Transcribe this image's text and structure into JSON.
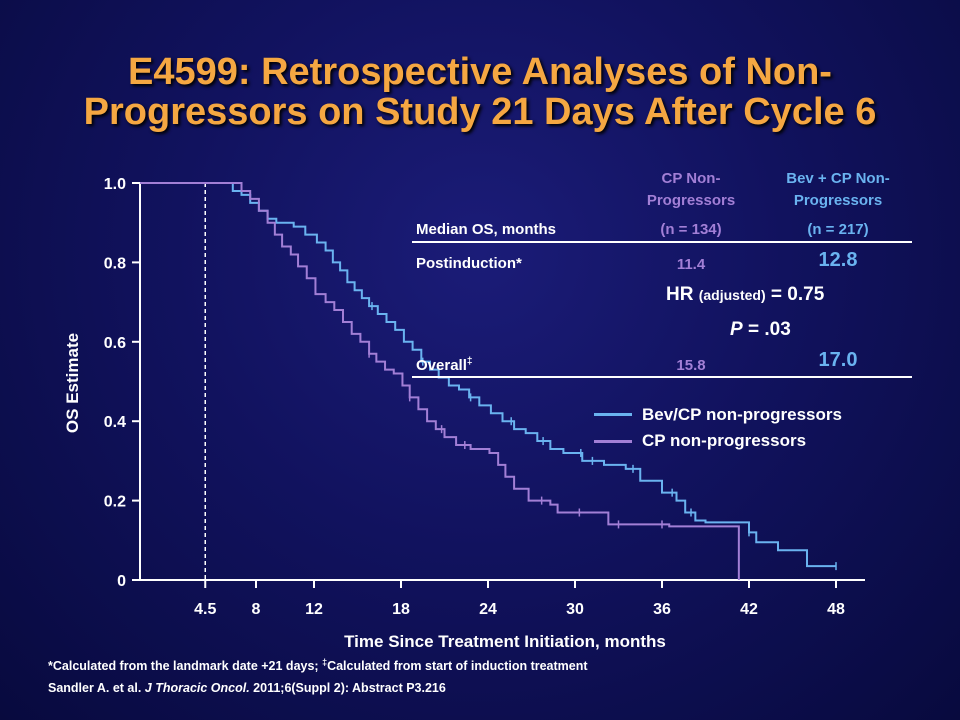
{
  "title": {
    "line1": "E4599: Retrospective Analyses of Non-",
    "line2": "Progressors on Study 21 Days After Cycle 6"
  },
  "table": {
    "col_cp_header_1": "CP Non-",
    "col_cp_header_2": "Progressors",
    "col_bev_header_1": "Bev + CP Non-",
    "col_bev_header_2": "Progressors",
    "row_header": "Median OS, months",
    "cp_n": "(n = 134)",
    "bev_n": "(n = 217)",
    "postinduction_label": "Postinduction*",
    "postinduction_cp": "11.4",
    "postinduction_bev": "12.8",
    "hr_prefix": "HR",
    "hr_adjusted": "(adjusted)",
    "hr_value": "= 0.75",
    "p_label": "P",
    "p_value": "= .03",
    "overall_label": "Overall",
    "overall_mark": "‡",
    "overall_cp": "15.8",
    "overall_bev": "17.0"
  },
  "legend": {
    "bev": "Bev/CP non-progressors",
    "cp": "CP non-progressors"
  },
  "colors": {
    "bev": "#6ab3f0",
    "cp": "#a27fd6",
    "title": "#f5a742"
  },
  "footer": {
    "line1_part1": "*Calculated from the landmark date +21 days; ",
    "line1_mark": "‡",
    "line1_part2": "Calculated from start of induction treatment",
    "line2_part1": "Sandler A. et al. ",
    "line2_journal": "J Thoracic Oncol.",
    "line2_part2": " 2011;6(Suppl 2): Abstract P3.216"
  },
  "chart_data": {
    "type": "line",
    "step": true,
    "xlabel": "Time Since Treatment Initiation, months",
    "ylabel": "OS Estimate",
    "xticks": [
      4.5,
      8,
      12,
      18,
      24,
      30,
      36,
      42,
      48
    ],
    "xtick_labels": [
      "4.5",
      "8",
      "12",
      "18",
      "24",
      "30",
      "36",
      "42",
      "48"
    ],
    "yticks": [
      0,
      0.2,
      0.4,
      0.6,
      0.8,
      1.0
    ],
    "ytick_labels": [
      "0",
      "0.2",
      "0.4",
      "0.6",
      "0.8",
      "1.0"
    ],
    "xlim": [
      0,
      50
    ],
    "ylim": [
      0,
      1
    ],
    "landmark_x": 4.5,
    "series": [
      {
        "name": "Bev/CP non-progressors",
        "color": "#6ab3f0",
        "points": [
          [
            0,
            1.0
          ],
          [
            6.0,
            1.0
          ],
          [
            6.4,
            0.98
          ],
          [
            7.0,
            0.97
          ],
          [
            7.6,
            0.95
          ],
          [
            8.2,
            0.93
          ],
          [
            8.8,
            0.91
          ],
          [
            9.4,
            0.9
          ],
          [
            10.2,
            0.9
          ],
          [
            10.6,
            0.89
          ],
          [
            11.4,
            0.87
          ],
          [
            12.2,
            0.85
          ],
          [
            12.8,
            0.83
          ],
          [
            13.3,
            0.8
          ],
          [
            13.8,
            0.78
          ],
          [
            14.3,
            0.75
          ],
          [
            14.8,
            0.73
          ],
          [
            15.3,
            0.71
          ],
          [
            15.8,
            0.69
          ],
          [
            16.4,
            0.67
          ],
          [
            17.0,
            0.65
          ],
          [
            17.6,
            0.63
          ],
          [
            18.2,
            0.6
          ],
          [
            18.8,
            0.58
          ],
          [
            19.4,
            0.55
          ],
          [
            20.0,
            0.53
          ],
          [
            20.6,
            0.51
          ],
          [
            21.3,
            0.49
          ],
          [
            22.0,
            0.48
          ],
          [
            22.7,
            0.46
          ],
          [
            23.4,
            0.44
          ],
          [
            24.2,
            0.42
          ],
          [
            25.0,
            0.4
          ],
          [
            25.8,
            0.38
          ],
          [
            26.6,
            0.37
          ],
          [
            27.4,
            0.35
          ],
          [
            28.3,
            0.33
          ],
          [
            29.2,
            0.32
          ],
          [
            30.5,
            0.3
          ],
          [
            32.0,
            0.29
          ],
          [
            33.5,
            0.28
          ],
          [
            34.5,
            0.25
          ],
          [
            36.0,
            0.22
          ],
          [
            37.0,
            0.2
          ],
          [
            37.6,
            0.17
          ],
          [
            38.3,
            0.15
          ],
          [
            39.0,
            0.145
          ],
          [
            42.0,
            0.12
          ],
          [
            42.5,
            0.095
          ],
          [
            44.0,
            0.075
          ],
          [
            46.0,
            0.035
          ],
          [
            48.0,
            0.035
          ]
        ],
        "censor_x": [
          16,
          19.5,
          22.8,
          25.6,
          27.8,
          30.4,
          31.2,
          34.0,
          36.7,
          38.0,
          42.0,
          48.0
        ]
      },
      {
        "name": "CP non-progressors",
        "color": "#a27fd6",
        "points": [
          [
            0,
            1.0
          ],
          [
            6.4,
            1.0
          ],
          [
            7.0,
            0.98
          ],
          [
            7.6,
            0.96
          ],
          [
            8.2,
            0.93
          ],
          [
            8.8,
            0.9
          ],
          [
            9.3,
            0.87
          ],
          [
            9.8,
            0.84
          ],
          [
            10.4,
            0.82
          ],
          [
            10.9,
            0.79
          ],
          [
            11.5,
            0.76
          ],
          [
            12.1,
            0.72
          ],
          [
            12.8,
            0.7
          ],
          [
            13.4,
            0.68
          ],
          [
            14.0,
            0.65
          ],
          [
            14.6,
            0.62
          ],
          [
            15.2,
            0.6
          ],
          [
            15.8,
            0.57
          ],
          [
            16.3,
            0.55
          ],
          [
            16.9,
            0.53
          ],
          [
            17.5,
            0.52
          ],
          [
            18.1,
            0.49
          ],
          [
            18.6,
            0.46
          ],
          [
            19.2,
            0.43
          ],
          [
            19.8,
            0.4
          ],
          [
            20.4,
            0.38
          ],
          [
            21.0,
            0.36
          ],
          [
            21.8,
            0.34
          ],
          [
            22.8,
            0.33
          ],
          [
            24.1,
            0.32
          ],
          [
            24.7,
            0.29
          ],
          [
            25.2,
            0.26
          ],
          [
            25.8,
            0.23
          ],
          [
            26.8,
            0.2
          ],
          [
            28.3,
            0.19
          ],
          [
            28.8,
            0.17
          ],
          [
            32.3,
            0.14
          ],
          [
            36.5,
            0.135
          ],
          [
            41.3,
            0.135
          ],
          [
            41.3,
            0.0
          ]
        ],
        "censor_x": [
          15.8,
          18.6,
          20.8,
          22.4,
          27.7,
          30.3,
          33.0,
          36.0
        ]
      }
    ]
  }
}
